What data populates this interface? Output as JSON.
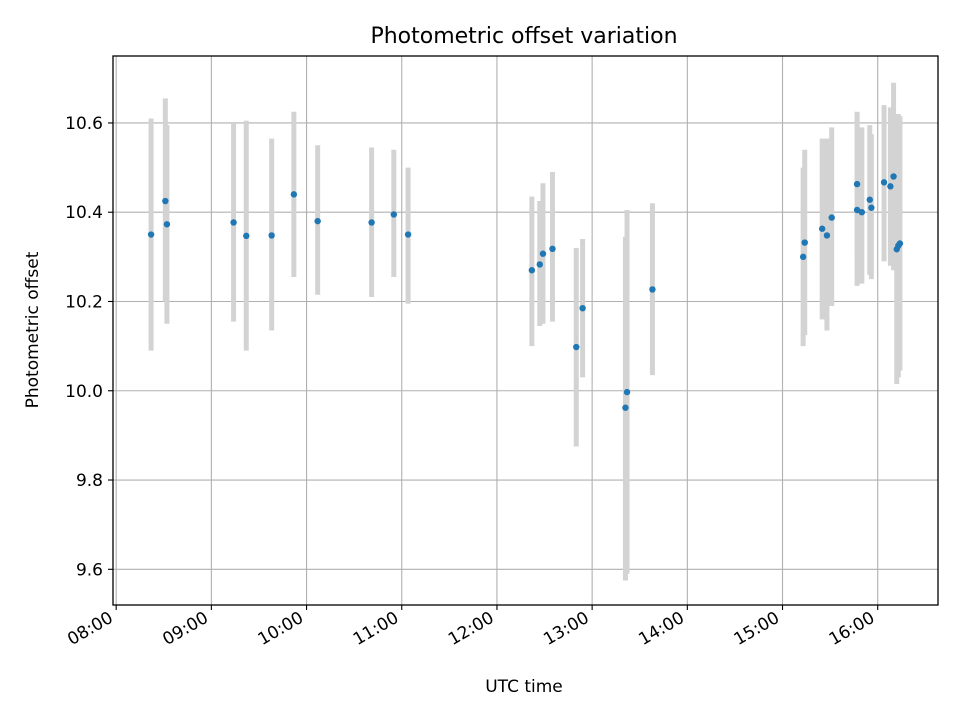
{
  "chart_data": {
    "type": "scatter",
    "title": "Photometric offset variation",
    "xlabel": "UTC time",
    "ylabel": "Photometric offset",
    "x_unit": "UTC time",
    "xlim": [
      "07:58",
      "16:38"
    ],
    "ylim": [
      9.52,
      10.75
    ],
    "x_ticks": [
      "08:00",
      "09:00",
      "10:00",
      "11:00",
      "12:00",
      "13:00",
      "14:00",
      "15:00",
      "16:00"
    ],
    "y_ticks": [
      9.6,
      9.8,
      10.0,
      10.2,
      10.4,
      10.6
    ],
    "y_tick_labels": [
      "9.6",
      "9.8",
      "10.0",
      "10.2",
      "10.4",
      "10.6"
    ],
    "grid": true,
    "marker_color": "#1f77b4",
    "errorbar_color": "#d3d3d3",
    "points": [
      {
        "t": "08:22",
        "y": 10.35,
        "lo": 10.09,
        "hi": 10.61
      },
      {
        "t": "08:31",
        "y": 10.425,
        "lo": 10.2,
        "hi": 10.655
      },
      {
        "t": "08:32",
        "y": 10.373,
        "lo": 10.15,
        "hi": 10.595
      },
      {
        "t": "09:14",
        "y": 10.377,
        "lo": 10.155,
        "hi": 10.6
      },
      {
        "t": "09:22",
        "y": 10.347,
        "lo": 10.09,
        "hi": 10.605
      },
      {
        "t": "09:38",
        "y": 10.348,
        "lo": 10.135,
        "hi": 10.565
      },
      {
        "t": "09:52",
        "y": 10.44,
        "lo": 10.255,
        "hi": 10.625
      },
      {
        "t": "10:07",
        "y": 10.38,
        "lo": 10.215,
        "hi": 10.55
      },
      {
        "t": "10:41",
        "y": 10.377,
        "lo": 10.21,
        "hi": 10.545
      },
      {
        "t": "10:55",
        "y": 10.395,
        "lo": 10.255,
        "hi": 10.54
      },
      {
        "t": "11:04",
        "y": 10.35,
        "lo": 10.195,
        "hi": 10.5
      },
      {
        "t": "12:22",
        "y": 10.27,
        "lo": 10.1,
        "hi": 10.435
      },
      {
        "t": "12:27",
        "y": 10.283,
        "lo": 10.145,
        "hi": 10.425
      },
      {
        "t": "12:29",
        "y": 10.307,
        "lo": 10.15,
        "hi": 10.465
      },
      {
        "t": "12:35",
        "y": 10.318,
        "lo": 10.155,
        "hi": 10.49
      },
      {
        "t": "12:50",
        "y": 10.098,
        "lo": 9.875,
        "hi": 10.32
      },
      {
        "t": "12:54",
        "y": 10.185,
        "lo": 10.03,
        "hi": 10.34
      },
      {
        "t": "13:21",
        "y": 9.962,
        "lo": 9.575,
        "hi": 10.345
      },
      {
        "t": "13:22",
        "y": 9.997,
        "lo": 9.59,
        "hi": 10.405
      },
      {
        "t": "13:38",
        "y": 10.227,
        "lo": 10.035,
        "hi": 10.42
      },
      {
        "t": "15:13",
        "y": 10.3,
        "lo": 10.1,
        "hi": 10.5
      },
      {
        "t": "15:14",
        "y": 10.332,
        "lo": 10.125,
        "hi": 10.54
      },
      {
        "t": "15:25",
        "y": 10.363,
        "lo": 10.16,
        "hi": 10.565
      },
      {
        "t": "15:28",
        "y": 10.348,
        "lo": 10.135,
        "hi": 10.565
      },
      {
        "t": "15:31",
        "y": 10.388,
        "lo": 10.19,
        "hi": 10.59
      },
      {
        "t": "15:47",
        "y": 10.405,
        "lo": 10.235,
        "hi": 10.625
      },
      {
        "t": "15:47",
        "y": 10.463,
        "lo": 10.3,
        "hi": 10.62
      },
      {
        "t": "15:50",
        "y": 10.4,
        "lo": 10.24,
        "hi": 10.59
      },
      {
        "t": "15:55",
        "y": 10.428,
        "lo": 10.26,
        "hi": 10.595
      },
      {
        "t": "15:56",
        "y": 10.41,
        "lo": 10.25,
        "hi": 10.575
      },
      {
        "t": "16:04",
        "y": 10.467,
        "lo": 10.29,
        "hi": 10.64
      },
      {
        "t": "16:08",
        "y": 10.458,
        "lo": 10.28,
        "hi": 10.635
      },
      {
        "t": "16:10",
        "y": 10.48,
        "lo": 10.27,
        "hi": 10.69
      },
      {
        "t": "16:12",
        "y": 10.317,
        "lo": 10.015,
        "hi": 10.62
      },
      {
        "t": "16:13",
        "y": 10.325,
        "lo": 10.03,
        "hi": 10.62
      },
      {
        "t": "16:14",
        "y": 10.33,
        "lo": 10.045,
        "hi": 10.615
      }
    ]
  }
}
